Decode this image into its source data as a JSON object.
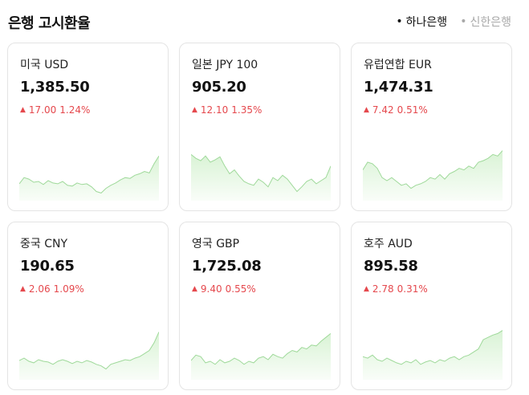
{
  "header": {
    "title": "은행 고시환율",
    "tabs": [
      {
        "label": "하나은행",
        "active": true
      },
      {
        "label": "신한은행",
        "active": false
      }
    ]
  },
  "colors": {
    "up": "#e5484d",
    "line": "#9fd99a",
    "fill": "#d9f3d5"
  },
  "cards": [
    {
      "name": "미국 USD",
      "value": "1,385.50",
      "change": "17.00",
      "percent": "1.24%",
      "direction": "up",
      "trend": [
        0.22,
        0.3,
        0.28,
        0.24,
        0.25,
        0.21,
        0.26,
        0.23,
        0.22,
        0.25,
        0.2,
        0.19,
        0.23,
        0.21,
        0.22,
        0.18,
        0.12,
        0.1,
        0.16,
        0.2,
        0.23,
        0.27,
        0.3,
        0.29,
        0.33,
        0.35,
        0.38,
        0.36,
        0.48,
        0.58
      ]
    },
    {
      "name": "일본 JPY 100",
      "value": "905.20",
      "change": "12.10",
      "percent": "1.35%",
      "direction": "up",
      "trend": [
        0.6,
        0.55,
        0.52,
        0.58,
        0.5,
        0.53,
        0.57,
        0.45,
        0.35,
        0.4,
        0.32,
        0.25,
        0.22,
        0.2,
        0.28,
        0.24,
        0.18,
        0.3,
        0.26,
        0.33,
        0.28,
        0.2,
        0.12,
        0.18,
        0.25,
        0.28,
        0.22,
        0.26,
        0.3,
        0.45
      ]
    },
    {
      "name": "유럽연합 EUR",
      "value": "1,474.31",
      "change": "7.42",
      "percent": "0.51%",
      "direction": "up",
      "trend": [
        0.4,
        0.5,
        0.48,
        0.42,
        0.3,
        0.26,
        0.3,
        0.25,
        0.2,
        0.22,
        0.16,
        0.2,
        0.22,
        0.25,
        0.3,
        0.28,
        0.34,
        0.28,
        0.35,
        0.38,
        0.42,
        0.4,
        0.45,
        0.42,
        0.5,
        0.52,
        0.55,
        0.6,
        0.58,
        0.65
      ]
    },
    {
      "name": "중국 CNY",
      "value": "190.65",
      "change": "2.06",
      "percent": "1.09%",
      "direction": "up",
      "trend": [
        0.25,
        0.28,
        0.24,
        0.22,
        0.26,
        0.24,
        0.23,
        0.2,
        0.24,
        0.26,
        0.24,
        0.21,
        0.24,
        0.22,
        0.25,
        0.23,
        0.2,
        0.18,
        0.14,
        0.2,
        0.22,
        0.24,
        0.26,
        0.25,
        0.28,
        0.3,
        0.34,
        0.38,
        0.48,
        0.62
      ]
    },
    {
      "name": "영국 GBP",
      "value": "1,725.08",
      "change": "9.40",
      "percent": "0.55%",
      "direction": "up",
      "trend": [
        0.25,
        0.32,
        0.3,
        0.22,
        0.24,
        0.2,
        0.26,
        0.22,
        0.24,
        0.28,
        0.25,
        0.2,
        0.24,
        0.22,
        0.28,
        0.3,
        0.26,
        0.33,
        0.3,
        0.28,
        0.34,
        0.38,
        0.36,
        0.42,
        0.4,
        0.45,
        0.44,
        0.5,
        0.55,
        0.6
      ]
    },
    {
      "name": "호주 AUD",
      "value": "895.58",
      "change": "2.78",
      "percent": "0.31%",
      "direction": "up",
      "trend": [
        0.3,
        0.28,
        0.32,
        0.26,
        0.24,
        0.28,
        0.25,
        0.22,
        0.2,
        0.24,
        0.22,
        0.26,
        0.2,
        0.23,
        0.25,
        0.22,
        0.26,
        0.24,
        0.28,
        0.3,
        0.26,
        0.3,
        0.32,
        0.36,
        0.4,
        0.52,
        0.55,
        0.58,
        0.6,
        0.64
      ]
    }
  ]
}
